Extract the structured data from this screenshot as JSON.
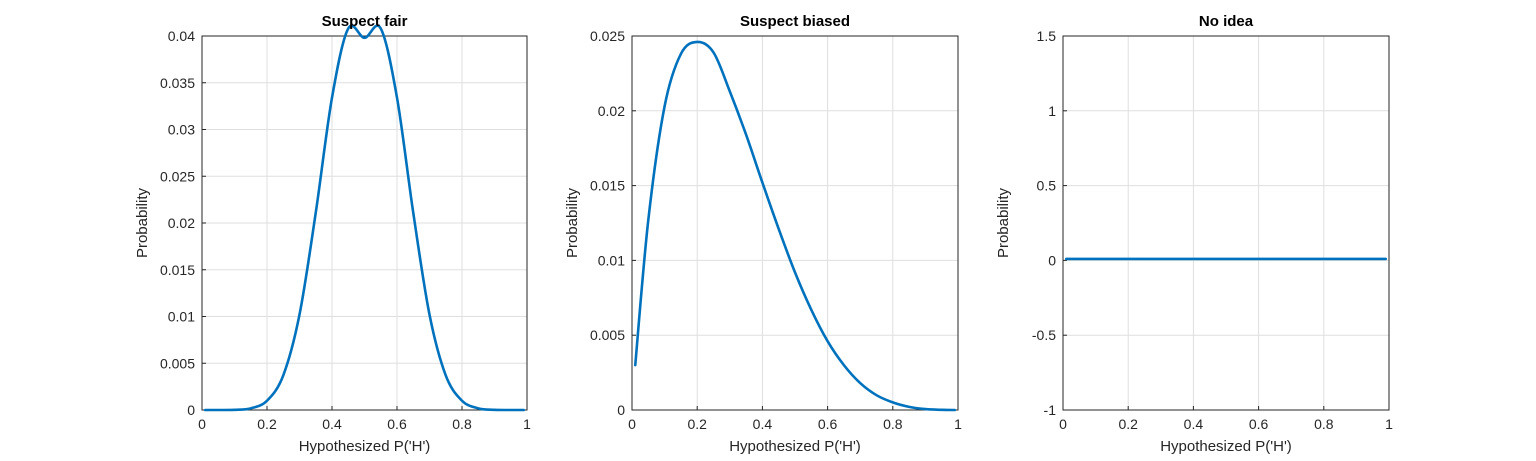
{
  "colors": {
    "series": "#0072BD",
    "axis": "#262626",
    "grid": "#dfdfdf"
  },
  "chart_data": [
    {
      "type": "line",
      "title": "Suspect fair",
      "xlabel": "Hypothesized P('H')",
      "ylabel": "Probability",
      "xlim": [
        0,
        1
      ],
      "ylim": [
        0,
        0.04
      ],
      "xticks": [
        "0",
        "0.2",
        "0.4",
        "0.6",
        "0.8",
        "1"
      ],
      "yticks": [
        "0",
        "0.005",
        "0.01",
        "0.015",
        "0.02",
        "0.025",
        "0.03",
        "0.035",
        "0.04"
      ],
      "grid": true,
      "series": [
        {
          "x": [
            0.01,
            0.05,
            0.1,
            0.15,
            0.2,
            0.25,
            0.3,
            0.35,
            0.4,
            0.45,
            0.5,
            0.55,
            0.6,
            0.65,
            0.7,
            0.75,
            0.8,
            0.85,
            0.9,
            0.95,
            0.99
          ],
          "values": [
            0.0,
            0.0,
            2e-05,
            0.00018,
            0.00099,
            0.0037,
            0.0102,
            0.0211,
            0.0334,
            0.0408,
            0.0398,
            0.0408,
            0.0334,
            0.0211,
            0.0102,
            0.0037,
            0.00099,
            0.00018,
            2e-05,
            0.0,
            0.0
          ]
        }
      ]
    },
    {
      "type": "line",
      "title": "Suspect biased",
      "xlabel": "Hypothesized P('H')",
      "ylabel": "Probability",
      "xlim": [
        0,
        1
      ],
      "ylim": [
        0,
        0.025
      ],
      "xticks": [
        "0",
        "0.2",
        "0.4",
        "0.6",
        "0.8",
        "1"
      ],
      "yticks": [
        "0",
        "0.005",
        "0.01",
        "0.015",
        "0.02",
        "0.025"
      ],
      "grid": true,
      "series": [
        {
          "x": [
            0.01,
            0.05,
            0.1,
            0.15,
            0.2,
            0.25,
            0.3,
            0.35,
            0.4,
            0.45,
            0.5,
            0.55,
            0.6,
            0.65,
            0.7,
            0.75,
            0.8,
            0.85,
            0.9,
            0.95,
            0.99
          ],
          "values": [
            0.003,
            0.0127,
            0.0203,
            0.0238,
            0.0246,
            0.0239,
            0.0213,
            0.0184,
            0.0152,
            0.0121,
            0.0092,
            0.0067,
            0.0046,
            0.003,
            0.0018,
            0.00099,
            0.00051,
            0.00021,
            6e-05,
            1e-05,
            0.0
          ]
        }
      ]
    },
    {
      "type": "line",
      "title": "No idea",
      "xlabel": "Hypothesized P('H')",
      "ylabel": "Probability",
      "xlim": [
        0,
        1
      ],
      "ylim": [
        -1,
        1.5
      ],
      "xticks": [
        "0",
        "0.2",
        "0.4",
        "0.6",
        "0.8",
        "1"
      ],
      "yticks": [
        "-1",
        "-0.5",
        "0",
        "0.5",
        "1",
        "1.5"
      ],
      "grid": true,
      "series": [
        {
          "x": [
            0.01,
            0.99
          ],
          "values": [
            0.01,
            0.01
          ]
        }
      ]
    }
  ]
}
